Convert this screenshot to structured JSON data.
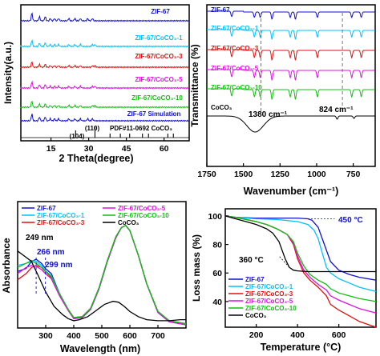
{
  "chart_data": [
    {
      "type": "line",
      "panel": "xrd",
      "xlabel": "2 Theta(degree)",
      "ylabel": "Intensity(a.u.)",
      "xlim": [
        3,
        70
      ],
      "xticks": [
        15,
        30,
        45,
        60
      ],
      "series": [
        {
          "name": "ZIF-67",
          "color": "#1010d0",
          "peaks": [
            7.4,
            10.4,
            12.7,
            14.7,
            16.4,
            18.0,
            22.1,
            24.5,
            26.7,
            29.6,
            31.5
          ]
        },
        {
          "name": "ZIF-67/CoCO₃-1",
          "color": "#00c0ff",
          "peaks": [
            7.4,
            10.4,
            12.7,
            14.7,
            16.4,
            18.0,
            22.1,
            24.5,
            26.7,
            31.5,
            32.5
          ]
        },
        {
          "name": "ZIF-67/CoCO₃-3",
          "color": "#e01010",
          "peaks": [
            7.4,
            10.4,
            12.7,
            14.7,
            16.4,
            18.0,
            22.1,
            24.5,
            26.7,
            31.5,
            32.5
          ]
        },
        {
          "name": "ZIF-67/CoCO₃-5",
          "color": "#e010e0",
          "peaks": [
            7.4,
            10.4,
            12.7,
            14.7,
            16.4,
            18.0,
            22.1,
            24.5,
            26.7,
            31.5,
            32.5
          ]
        },
        {
          "name": "ZIF-67/CoCO₃-10",
          "color": "#10c010",
          "peaks": [
            7.4,
            10.4,
            12.7,
            14.7,
            16.4,
            18.0,
            22.1,
            24.5,
            26.7,
            31.5,
            32.5
          ]
        },
        {
          "name": "ZIF-67 Simulation",
          "color": "#1010d0",
          "peaks": [
            7.4,
            10.4,
            12.7,
            14.7,
            16.4,
            18.0,
            22.1,
            24.5,
            26.7,
            29.6,
            31.5
          ]
        }
      ],
      "reference": {
        "name": "PDF#11-0692 CoCO₃",
        "peaks": [
          24.8,
          32.5,
          38.5,
          42.6,
          46.3,
          51.4,
          53.8,
          61.5,
          63.7
        ]
      },
      "annotations": [
        "(104)",
        "(110)"
      ]
    },
    {
      "type": "line",
      "panel": "ftir",
      "xlabel": "Wavenumber (cm⁻¹)",
      "ylabel": "Transmittance (%)",
      "xlim": [
        1750,
        600
      ],
      "xticks": [
        1750,
        1500,
        1250,
        1000,
        750
      ],
      "series": [
        {
          "name": "ZIF-67",
          "color": "#1010d0"
        },
        {
          "name": "ZIF-67/CoCO₃-1",
          "color": "#00c0ff"
        },
        {
          "name": "ZIF-67/CoCO₃-3",
          "color": "#e01010"
        },
        {
          "name": "ZIF-67/CoCO₃-5",
          "color": "#e010e0"
        },
        {
          "name": "ZIF-67/CoCO₃-10",
          "color": "#10c010"
        },
        {
          "name": "CoCO₃",
          "color": "#000000"
        }
      ],
      "dips": [
        1580,
        1425,
        1385,
        1305,
        1180,
        1145,
        995,
        760,
        695
      ],
      "annotations": [
        "1380 cm⁻¹",
        "824 cm⁻¹"
      ],
      "markers": [
        1380,
        824
      ]
    },
    {
      "type": "line",
      "panel": "uvvis",
      "xlabel": "Wavelength (nm)",
      "ylabel": "Absorbance",
      "xlim": [
        200,
        800
      ],
      "xticks": [
        300,
        400,
        500,
        600,
        700
      ],
      "legend": "top",
      "series": [
        {
          "name": "ZIF-67",
          "color": "#1010d0",
          "x": [
            200,
            230,
            250,
            266,
            285,
            299,
            320,
            350,
            380,
            400,
            430,
            460,
            490,
            520,
            550,
            570,
            585,
            600,
            630,
            660,
            700,
            740,
            780,
            800
          ],
          "y": [
            0.52,
            0.55,
            0.62,
            0.64,
            0.6,
            0.55,
            0.5,
            0.3,
            0.15,
            0.06,
            0.07,
            0.15,
            0.35,
            0.62,
            0.85,
            0.95,
            0.97,
            0.92,
            0.68,
            0.4,
            0.12,
            0.03,
            0.01,
            0.0
          ]
        },
        {
          "name": "ZIF-67/CoCO₃-1",
          "color": "#00c0ff",
          "x": [
            200,
            230,
            250,
            266,
            285,
            299,
            320,
            350,
            380,
            400,
            430,
            460,
            490,
            520,
            550,
            570,
            585,
            600,
            630,
            660,
            700,
            740,
            780,
            800
          ],
          "y": [
            0.58,
            0.6,
            0.63,
            0.62,
            0.58,
            0.53,
            0.48,
            0.3,
            0.15,
            0.07,
            0.08,
            0.16,
            0.36,
            0.63,
            0.86,
            0.95,
            0.97,
            0.92,
            0.68,
            0.4,
            0.13,
            0.04,
            0.02,
            0.01
          ]
        },
        {
          "name": "ZIF-67/CoCO₃-3",
          "color": "#e01010",
          "x": [
            200,
            230,
            250,
            266,
            285,
            299,
            320,
            350,
            380,
            400,
            430,
            460,
            490,
            520,
            550,
            570,
            585,
            600,
            630,
            660,
            700,
            740,
            780,
            800
          ],
          "y": [
            0.44,
            0.5,
            0.56,
            0.58,
            0.56,
            0.52,
            0.46,
            0.29,
            0.15,
            0.07,
            0.08,
            0.16,
            0.36,
            0.63,
            0.86,
            0.95,
            0.97,
            0.92,
            0.68,
            0.4,
            0.13,
            0.04,
            0.02,
            0.01
          ]
        },
        {
          "name": "ZIF-67/CoCO₃-5",
          "color": "#e010e0",
          "x": [
            200,
            230,
            250,
            266,
            285,
            299,
            320,
            350,
            380,
            400,
            430,
            460,
            490,
            520,
            550,
            570,
            585,
            600,
            630,
            660,
            700,
            740,
            780,
            800
          ],
          "y": [
            0.5,
            0.56,
            0.58,
            0.57,
            0.54,
            0.5,
            0.45,
            0.28,
            0.14,
            0.06,
            0.07,
            0.15,
            0.35,
            0.62,
            0.85,
            0.95,
            0.97,
            0.92,
            0.68,
            0.4,
            0.12,
            0.03,
            0.01,
            0.0
          ]
        },
        {
          "name": "ZIF-67/CoCO₃-10",
          "color": "#10c010",
          "x": [
            200,
            230,
            250,
            266,
            285,
            299,
            320,
            350,
            380,
            400,
            430,
            460,
            490,
            520,
            550,
            570,
            585,
            600,
            630,
            660,
            700,
            740,
            780,
            800
          ],
          "y": [
            0.56,
            0.6,
            0.62,
            0.6,
            0.56,
            0.52,
            0.47,
            0.3,
            0.15,
            0.07,
            0.08,
            0.16,
            0.36,
            0.63,
            0.86,
            0.95,
            0.97,
            0.92,
            0.68,
            0.4,
            0.13,
            0.04,
            0.02,
            0.01
          ]
        },
        {
          "name": "CoCO₃",
          "color": "#000000",
          "x": [
            200,
            220,
            249,
            270,
            300,
            330,
            360,
            380,
            400,
            420,
            450,
            480,
            510,
            540,
            560,
            580,
            600,
            630,
            660,
            700,
            740,
            780,
            800
          ],
          "y": [
            0.72,
            0.68,
            0.62,
            0.5,
            0.32,
            0.18,
            0.1,
            0.06,
            0.04,
            0.05,
            0.08,
            0.14,
            0.2,
            0.23,
            0.22,
            0.18,
            0.13,
            0.08,
            0.05,
            0.04,
            0.04,
            0.05,
            0.05
          ]
        }
      ],
      "annotations": [
        "249 nm",
        "266 nm",
        "299 nm"
      ],
      "markers": [
        266,
        299
      ]
    },
    {
      "type": "line",
      "panel": "tga",
      "xlabel": "Temperature (°C)",
      "ylabel": "Loss mass (%)",
      "xlim": [
        50,
        780
      ],
      "ylim": [
        22,
        105
      ],
      "xticks": [
        200,
        400,
        600
      ],
      "yticks": [
        40,
        60,
        80,
        100
      ],
      "legend": "bottom-left",
      "series": [
        {
          "name": "ZIF-67",
          "color": "#1010d0",
          "x": [
            50,
            100,
            200,
            300,
            400,
            450,
            470,
            500,
            530,
            560,
            600,
            650,
            700,
            780
          ],
          "y": [
            100,
            99,
            98.5,
            98.5,
            98.5,
            98,
            97,
            92,
            80,
            68,
            62,
            59,
            57,
            55
          ]
        },
        {
          "name": "ZIF-67/CoCO₃-1",
          "color": "#00c0ff",
          "x": [
            50,
            100,
            200,
            300,
            400,
            450,
            480,
            500,
            520,
            540,
            560,
            600,
            650,
            700,
            780
          ],
          "y": [
            100,
            99,
            98,
            97.5,
            96,
            94,
            90,
            84,
            74,
            64,
            60,
            56,
            53,
            50,
            47
          ]
        },
        {
          "name": "ZIF-67/CoCO₃-3",
          "color": "#e01010",
          "x": [
            50,
            100,
            200,
            250,
            300,
            350,
            380,
            400,
            430,
            460,
            500,
            540,
            560,
            600,
            650,
            700,
            780
          ],
          "y": [
            100,
            99,
            96,
            94,
            91,
            87,
            80,
            70,
            60,
            55,
            50,
            44,
            38,
            34,
            30,
            26,
            22
          ]
        },
        {
          "name": "ZIF-67/CoCO₃-5",
          "color": "#e010e0",
          "x": [
            50,
            100,
            200,
            250,
            300,
            350,
            380,
            400,
            430,
            460,
            500,
            540,
            560,
            600,
            650,
            700,
            780
          ],
          "y": [
            100,
            99,
            96,
            94,
            91,
            87,
            81,
            72,
            62,
            57,
            52,
            48,
            44,
            41,
            38,
            35,
            32
          ]
        },
        {
          "name": "ZIF-67/CoCO₃-10",
          "color": "#10c010",
          "x": [
            50,
            100,
            200,
            250,
            300,
            350,
            380,
            400,
            430,
            460,
            500,
            540,
            560,
            600,
            650,
            700,
            780
          ],
          "y": [
            100,
            99,
            96,
            94,
            91,
            87,
            82,
            74,
            65,
            59,
            55,
            52,
            49,
            46,
            44,
            42,
            40
          ]
        },
        {
          "name": "CoCO₃",
          "color": "#000000",
          "x": [
            50,
            100,
            150,
            200,
            250,
            280,
            310,
            340,
            360,
            380,
            400,
            450,
            500,
            600,
            700,
            780
          ],
          "y": [
            100,
            98,
            96,
            94,
            91,
            88,
            82,
            70,
            64,
            62,
            61.5,
            61,
            61,
            61,
            61,
            61
          ]
        }
      ],
      "annotations": [
        "450 °C",
        "360 °C"
      ]
    }
  ]
}
